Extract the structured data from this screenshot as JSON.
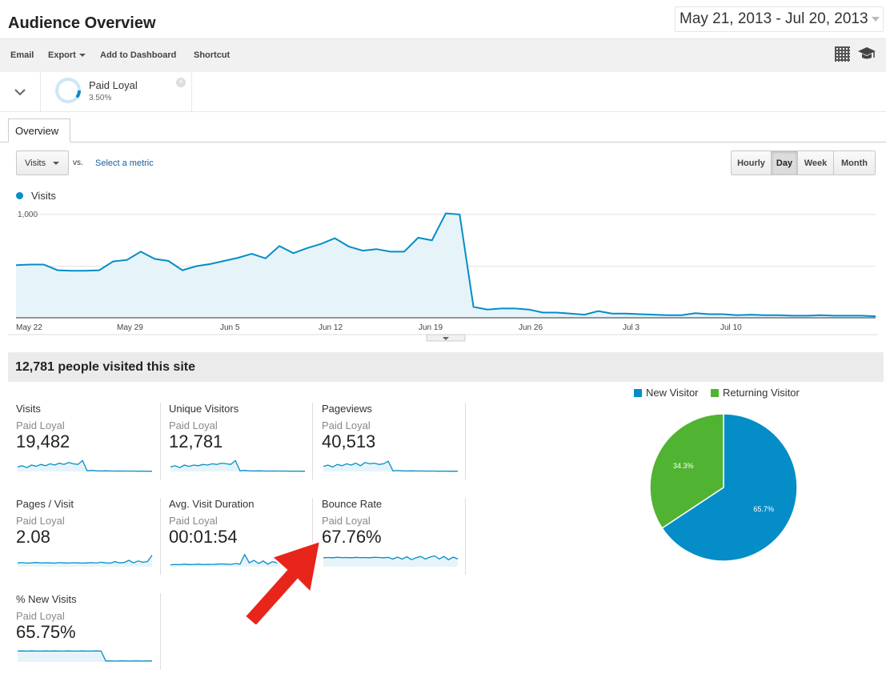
{
  "header": {
    "title": "Audience Overview",
    "date_range": "May 21, 2013 - Jul 20, 2013"
  },
  "toolbar": {
    "email": "Email",
    "export": "Export",
    "add_to_dashboard": "Add to Dashboard",
    "shortcut": "Shortcut",
    "icons": [
      "grid-icon",
      "graduation-cap-icon"
    ]
  },
  "segment": {
    "name": "Paid Loyal",
    "percent": "3.50%",
    "share": 0.035,
    "close": "×"
  },
  "tabs": [
    {
      "label": "Overview",
      "active": true
    }
  ],
  "controls": {
    "metric": "Visits",
    "vs": "vs.",
    "select_metric": "Select a metric",
    "periods": [
      {
        "label": "Hourly",
        "active": false
      },
      {
        "label": "Day",
        "active": true
      },
      {
        "label": "Week",
        "active": false
      },
      {
        "label": "Month",
        "active": false
      }
    ]
  },
  "colors": {
    "visits_line": "#058dc7",
    "area_fill": "#e6f4fa",
    "new_visitor": "#058dc7",
    "returning_visitor": "#50b432",
    "arrow": "#e8251b"
  },
  "chart_data": [
    {
      "type": "area",
      "series": [
        {
          "name": "Visits",
          "values": [
            510,
            515,
            515,
            460,
            455,
            455,
            460,
            545,
            560,
            640,
            570,
            550,
            460,
            500,
            520,
            550,
            580,
            620,
            575,
            695,
            625,
            675,
            715,
            770,
            690,
            650,
            665,
            640,
            640,
            775,
            750,
            1010,
            1000,
            105,
            80,
            90,
            90,
            80,
            50,
            50,
            40,
            30,
            65,
            40,
            40,
            35,
            30,
            25,
            25,
            45,
            35,
            35,
            25,
            30,
            25,
            25,
            20,
            20,
            25,
            20,
            20,
            20,
            15
          ]
        }
      ],
      "x_ticks": [
        "May 22",
        "May 29",
        "Jun 5",
        "Jun 12",
        "Jun 19",
        "Jun 26",
        "Jul 3",
        "Jul 10"
      ],
      "y_ticks": [
        "1,000",
        "500"
      ],
      "ylim": [
        0,
        1100
      ],
      "grid": true,
      "legend": "top-left"
    },
    {
      "type": "pie",
      "categories": [
        "New Visitor",
        "Returning Visitor"
      ],
      "values": [
        65.7,
        34.3
      ],
      "labels": [
        "65.7%",
        "34.3%"
      ],
      "legend": "top"
    }
  ],
  "summary": {
    "headline": "12,781 people visited this site"
  },
  "metrics": [
    {
      "title": "Visits",
      "segment": "Paid Loyal",
      "value": "19,482",
      "spark": [
        0.35,
        0.45,
        0.3,
        0.5,
        0.4,
        0.55,
        0.45,
        0.6,
        0.5,
        0.65,
        0.55,
        0.7,
        0.6,
        0.55,
        0.85,
        0.05,
        0.08,
        0.05,
        0.04,
        0.05,
        0.04,
        0.03,
        0.04,
        0.03,
        0.03,
        0.03,
        0.02,
        0.03,
        0.02,
        0.02
      ]
    },
    {
      "title": "Unique Visitors",
      "segment": "Paid Loyal",
      "value": "12,781",
      "spark": [
        0.35,
        0.45,
        0.3,
        0.5,
        0.4,
        0.5,
        0.45,
        0.55,
        0.5,
        0.6,
        0.55,
        0.65,
        0.6,
        0.55,
        0.85,
        0.05,
        0.08,
        0.05,
        0.04,
        0.05,
        0.04,
        0.03,
        0.04,
        0.03,
        0.03,
        0.03,
        0.02,
        0.03,
        0.02,
        0.02
      ]
    },
    {
      "title": "Pageviews",
      "segment": "Paid Loyal",
      "value": "40,513",
      "spark": [
        0.4,
        0.5,
        0.35,
        0.55,
        0.45,
        0.6,
        0.5,
        0.65,
        0.45,
        0.7,
        0.6,
        0.65,
        0.55,
        0.6,
        0.8,
        0.05,
        0.07,
        0.05,
        0.04,
        0.05,
        0.04,
        0.04,
        0.03,
        0.03,
        0.03,
        0.02,
        0.03,
        0.02,
        0.02,
        0.02
      ]
    },
    {
      "title": "Pages / Visit",
      "segment": "Paid Loyal",
      "value": "2.08",
      "spark": [
        0.3,
        0.32,
        0.28,
        0.3,
        0.33,
        0.29,
        0.31,
        0.3,
        0.28,
        0.32,
        0.3,
        0.29,
        0.31,
        0.3,
        0.28,
        0.3,
        0.32,
        0.29,
        0.35,
        0.3,
        0.28,
        0.4,
        0.3,
        0.33,
        0.5,
        0.3,
        0.45,
        0.35,
        0.4,
        0.9
      ]
    },
    {
      "title": "Avg. Visit Duration",
      "segment": "Paid Loyal",
      "value": "00:01:54",
      "spark": [
        0.15,
        0.18,
        0.16,
        0.2,
        0.17,
        0.18,
        0.2,
        0.17,
        0.19,
        0.18,
        0.2,
        0.22,
        0.2,
        0.18,
        0.25,
        0.2,
        0.95,
        0.3,
        0.5,
        0.25,
        0.45,
        0.2,
        0.4,
        0.3,
        0.35,
        0.25,
        0.3,
        0.28,
        0.3,
        0.3
      ]
    },
    {
      "title": "Bounce Rate",
      "segment": "Paid Loyal",
      "value": "67.76%",
      "spark": [
        0.7,
        0.72,
        0.7,
        0.74,
        0.71,
        0.72,
        0.7,
        0.73,
        0.71,
        0.72,
        0.7,
        0.74,
        0.72,
        0.7,
        0.73,
        0.6,
        0.75,
        0.6,
        0.78,
        0.55,
        0.7,
        0.8,
        0.6,
        0.75,
        0.85,
        0.6,
        0.8,
        0.55,
        0.75,
        0.6
      ]
    },
    {
      "title": "% New Visits",
      "segment": "Paid Loyal",
      "value": "65.75%",
      "spark": [
        0.85,
        0.86,
        0.85,
        0.86,
        0.85,
        0.85,
        0.86,
        0.85,
        0.86,
        0.85,
        0.85,
        0.86,
        0.85,
        0.85,
        0.86,
        0.85,
        0.85,
        0.86,
        0.85,
        0.08,
        0.08,
        0.07,
        0.08,
        0.08,
        0.07,
        0.08,
        0.08,
        0.07,
        0.08,
        0.08
      ]
    }
  ]
}
